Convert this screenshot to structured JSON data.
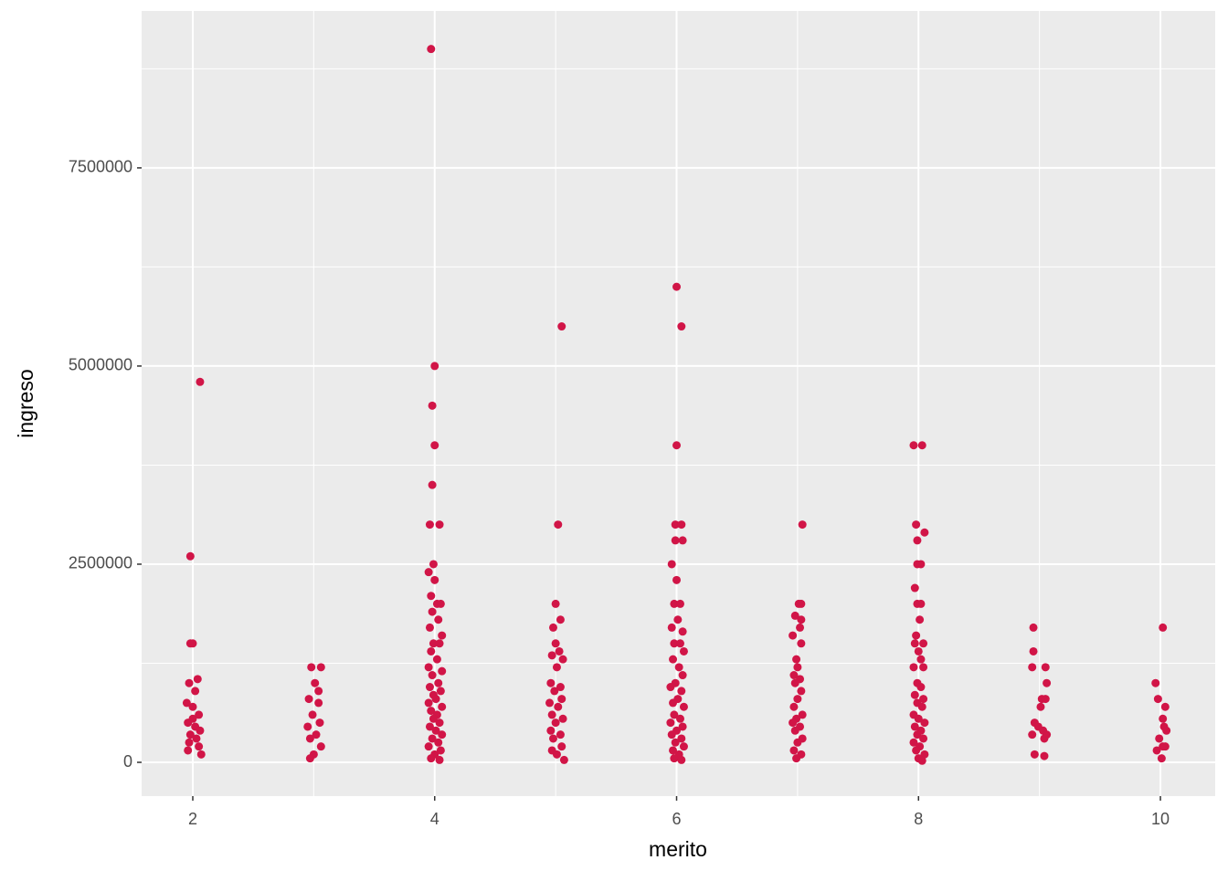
{
  "chart_data": {
    "type": "scatter",
    "x_label": "merito",
    "y_label": "ingreso",
    "color": "#d11547",
    "grid": true,
    "xlim": [
      1.577,
      10.453
    ],
    "ylim": [
      -426000,
      9480000
    ],
    "xticks": [
      2,
      4,
      6,
      8,
      10
    ],
    "yticks": [
      0,
      2500000,
      5000000,
      7500000
    ],
    "x": [
      2.06,
      1.98,
      1.98,
      2.0,
      1.97,
      2.04,
      2.02,
      1.95,
      2.0,
      2.05,
      1.96,
      2.02,
      2.06,
      1.98,
      2.03,
      1.97,
      2.05,
      1.96,
      2.07,
      2.0,
      2.98,
      3.06,
      3.01,
      2.96,
      3.04,
      2.99,
      3.05,
      2.95,
      3.02,
      2.97,
      3.06,
      3.0,
      2.97,
      3.04,
      3.97,
      4.0,
      3.98,
      4.0,
      3.98,
      3.96,
      4.04,
      3.99,
      3.95,
      4.0,
      3.97,
      4.02,
      4.05,
      3.98,
      4.03,
      3.96,
      4.06,
      3.99,
      4.04,
      3.97,
      4.02,
      3.95,
      4.06,
      3.98,
      4.03,
      3.96,
      4.05,
      3.99,
      4.01,
      3.95,
      4.06,
      3.97,
      4.02,
      3.99,
      4.04,
      3.96,
      4.01,
      4.06,
      3.98,
      4.03,
      3.95,
      4.05,
      4.0,
      3.97,
      4.04,
      5.05,
      5.02,
      5.0,
      5.04,
      4.98,
      5.0,
      5.03,
      4.97,
      5.06,
      5.01,
      4.96,
      5.04,
      4.99,
      5.05,
      4.95,
      5.02,
      4.97,
      5.06,
      5.0,
      4.96,
      5.04,
      4.98,
      5.05,
      4.97,
      5.01,
      5.07,
      6.0,
      6.04,
      6.0,
      5.99,
      6.04,
      5.99,
      6.05,
      5.96,
      6.0,
      5.98,
      6.03,
      6.01,
      5.96,
      6.05,
      5.98,
      6.03,
      6.06,
      5.97,
      6.02,
      6.05,
      5.99,
      5.95,
      6.04,
      6.01,
      5.97,
      6.06,
      5.98,
      6.03,
      5.95,
      6.05,
      6.0,
      5.96,
      6.04,
      5.99,
      6.06,
      5.97,
      6.02,
      5.98,
      6.04,
      7.04,
      7.01,
      7.03,
      6.98,
      7.03,
      7.02,
      6.96,
      7.03,
      6.99,
      7.0,
      6.97,
      7.02,
      6.98,
      7.03,
      7.0,
      6.97,
      7.04,
      6.99,
      6.96,
      7.02,
      6.98,
      7.04,
      7.0,
      6.97,
      7.03,
      6.99,
      7.96,
      8.03,
      7.98,
      8.05,
      7.99,
      7.99,
      8.02,
      7.97,
      7.99,
      8.02,
      8.01,
      7.98,
      7.97,
      8.04,
      8.0,
      8.02,
      7.96,
      8.04,
      7.99,
      8.02,
      7.97,
      8.04,
      7.99,
      8.03,
      7.96,
      8.0,
      8.05,
      7.97,
      8.02,
      7.99,
      8.04,
      7.96,
      8.01,
      7.98,
      8.05,
      8.0,
      8.03,
      8.95,
      8.95,
      8.94,
      9.05,
      9.06,
      9.02,
      9.05,
      9.01,
      8.96,
      8.99,
      8.94,
      9.03,
      9.06,
      9.04,
      8.96,
      9.04,
      10.02,
      9.96,
      9.98,
      10.04,
      10.02,
      10.03,
      10.05,
      9.99,
      10.02,
      9.97,
      10.04,
      10.01
    ],
    "values": [
      4800000,
      2600000,
      1500000,
      1500000,
      1000000,
      1050000,
      900000,
      750000,
      700000,
      600000,
      500000,
      450000,
      400000,
      350000,
      300000,
      250000,
      200000,
      150000,
      100000,
      550000,
      1200000,
      1200000,
      1000000,
      800000,
      750000,
      600000,
      500000,
      450000,
      350000,
      300000,
      200000,
      100000,
      50000,
      900000,
      9000000,
      5000000,
      4500000,
      4000000,
      3500000,
      3000000,
      3000000,
      2500000,
      2400000,
      2300000,
      2100000,
      2000000,
      2000000,
      1900000,
      1800000,
      1700000,
      1600000,
      1500000,
      1500000,
      1400000,
      1300000,
      1200000,
      1150000,
      1100000,
      1000000,
      950000,
      900000,
      850000,
      800000,
      750000,
      700000,
      650000,
      600000,
      550000,
      500000,
      450000,
      400000,
      350000,
      300000,
      250000,
      200000,
      150000,
      100000,
      50000,
      30000,
      5500000,
      3000000,
      2000000,
      1800000,
      1700000,
      1500000,
      1400000,
      1350000,
      1300000,
      1200000,
      1000000,
      950000,
      900000,
      800000,
      750000,
      700000,
      600000,
      550000,
      500000,
      400000,
      350000,
      300000,
      200000,
      150000,
      100000,
      30000,
      6000000,
      5500000,
      4000000,
      3000000,
      3000000,
      2800000,
      2800000,
      2500000,
      2300000,
      2000000,
      2000000,
      1800000,
      1700000,
      1650000,
      1500000,
      1500000,
      1400000,
      1300000,
      1200000,
      1100000,
      1000000,
      950000,
      900000,
      800000,
      750000,
      700000,
      600000,
      550000,
      500000,
      450000,
      400000,
      350000,
      300000,
      250000,
      200000,
      150000,
      100000,
      50000,
      30000,
      3000000,
      2000000,
      2000000,
      1850000,
      1800000,
      1700000,
      1600000,
      1500000,
      1300000,
      1200000,
      1100000,
      1050000,
      1000000,
      900000,
      800000,
      700000,
      600000,
      550000,
      500000,
      450000,
      400000,
      300000,
      250000,
      150000,
      100000,
      50000,
      4000000,
      4000000,
      3000000,
      2900000,
      2800000,
      2500000,
      2500000,
      2200000,
      2000000,
      2000000,
      1800000,
      1600000,
      1500000,
      1500000,
      1400000,
      1300000,
      1200000,
      1200000,
      1000000,
      950000,
      850000,
      800000,
      750000,
      700000,
      600000,
      550000,
      500000,
      450000,
      400000,
      350000,
      300000,
      250000,
      200000,
      150000,
      100000,
      50000,
      20000,
      1700000,
      1400000,
      1200000,
      1200000,
      1000000,
      800000,
      800000,
      700000,
      500000,
      450000,
      350000,
      400000,
      350000,
      300000,
      100000,
      80000,
      1700000,
      1000000,
      800000,
      700000,
      550000,
      450000,
      400000,
      300000,
      200000,
      150000,
      200000,
      50000
    ]
  }
}
